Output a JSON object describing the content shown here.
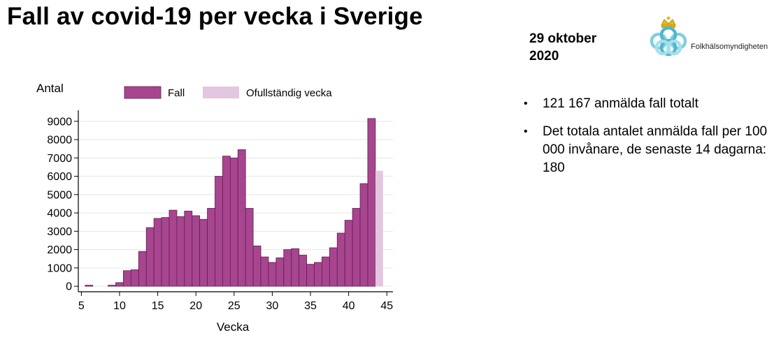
{
  "slide": {
    "title": "Fall av covid-19 per vecka i Sverige",
    "date_line1": "29 oktober",
    "date_line2": "2020",
    "logo_text": "Folkhälsomyndigheten",
    "bullets": [
      "121 167 anmälda fall totalt",
      "Det totala antalet anmälda fall per 100 000 invånare, de senaste 14 dagarna: 180"
    ],
    "bullet_symbol": "•"
  },
  "colors": {
    "fall_bar": "#a8458f",
    "fall_bar_stroke": "#5e1f52",
    "incomplete_bar": "#e3c6df",
    "grid": "#e6e6e6"
  },
  "chart_data": {
    "type": "bar",
    "title": "",
    "xlabel": "Vecka",
    "ylabel": "Antal",
    "xlim": [
      4.6,
      45.8
    ],
    "ylim": [
      -300,
      9600
    ],
    "xticks": [
      5,
      10,
      15,
      20,
      25,
      30,
      35,
      40,
      45
    ],
    "yticks": [
      0,
      1000,
      2000,
      3000,
      4000,
      5000,
      6000,
      7000,
      8000,
      9000
    ],
    "grid": true,
    "legend_position": "top",
    "series": [
      {
        "name": "Fall",
        "x": [
          6,
          9,
          10,
          11,
          12,
          13,
          14,
          15,
          16,
          17,
          18,
          19,
          20,
          21,
          22,
          23,
          24,
          25,
          26,
          27,
          28,
          29,
          30,
          31,
          32,
          33,
          34,
          35,
          36,
          37,
          38,
          39,
          40,
          41,
          42,
          43
        ],
        "values": [
          1,
          1,
          200,
          850,
          900,
          1900,
          3200,
          3700,
          3750,
          4150,
          3800,
          4100,
          3850,
          3650,
          4250,
          6000,
          7100,
          7000,
          7450,
          4250,
          2200,
          1600,
          1300,
          1550,
          2000,
          2050,
          1700,
          1200,
          1300,
          1600,
          2100,
          2900,
          3600,
          4250,
          5600,
          9150
        ]
      },
      {
        "name": "Ofullständig vecka",
        "x": [
          44
        ],
        "values": [
          6300
        ]
      }
    ]
  }
}
